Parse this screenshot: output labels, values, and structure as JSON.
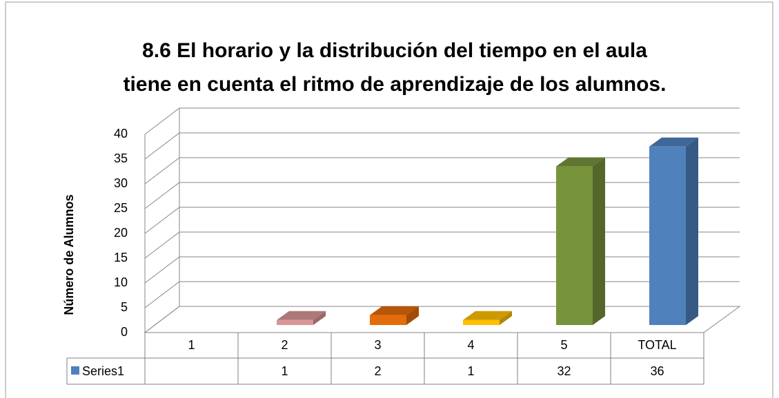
{
  "chart_data": {
    "type": "bar3d",
    "title": "8.6  El horario y la distribución del tiempo en el aula",
    "subtitle": "tiene en cuenta el ritmo de aprendizaje de los alumnos.",
    "y_label": "Número de  Alumnos",
    "categories": [
      "1",
      "2",
      "3",
      "4",
      "5",
      "TOTAL"
    ],
    "series": [
      {
        "name": "Series1",
        "color": "#4f81bd",
        "values": [
          null,
          1,
          2,
          1,
          32,
          36
        ],
        "colors": [
          null,
          "#d99694",
          "#e46c0a",
          "#ffc000",
          "#77933c",
          "#4f81bd"
        ]
      }
    ],
    "ylim": [
      0,
      40
    ],
    "yticks": [
      0,
      5,
      10,
      15,
      20,
      25,
      30,
      35,
      40
    ],
    "grid": true,
    "data_table": true
  }
}
